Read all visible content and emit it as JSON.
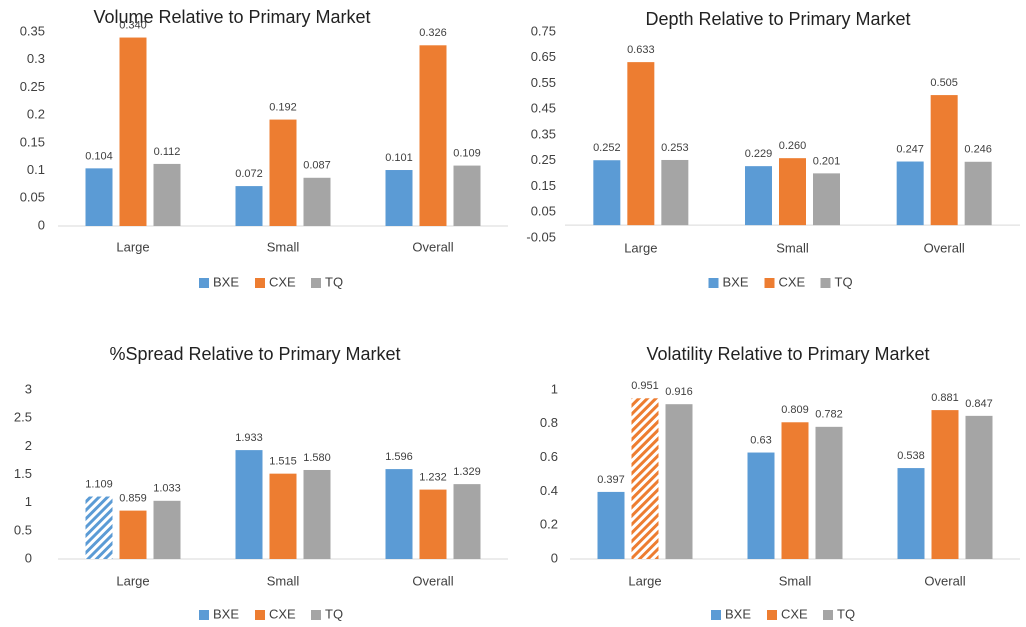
{
  "chart_data": [
    {
      "type": "bar",
      "title": "Volume Relative to Primary Market",
      "categories": [
        "Large",
        "Small",
        "Overall"
      ],
      "series": [
        {
          "name": "BXE",
          "color": "#5b9bd5",
          "values": [
            0.104,
            0.072,
            0.101
          ],
          "value_labels": [
            "0.104",
            "0.072",
            "0.101"
          ]
        },
        {
          "name": "CXE",
          "color": "#ed7d31",
          "values": [
            0.34,
            0.192,
            0.326
          ],
          "value_labels": [
            "0.340",
            "0.192",
            "0.326"
          ]
        },
        {
          "name": "TQ",
          "color": "#a5a5a5",
          "values": [
            0.112,
            0.087,
            0.109
          ],
          "value_labels": [
            "0.112",
            "0.087",
            "0.109"
          ]
        }
      ],
      "ylim": [
        0,
        0.35
      ],
      "yticks": [
        0,
        0.05,
        0.1,
        0.15,
        0.2,
        0.25,
        0.3,
        0.35
      ],
      "legend": "bottom"
    },
    {
      "type": "bar",
      "title": "Depth Relative to Primary Market",
      "categories": [
        "Large",
        "Small",
        "Overall"
      ],
      "series": [
        {
          "name": "BXE",
          "color": "#5b9bd5",
          "values": [
            0.252,
            0.229,
            0.247
          ],
          "value_labels": [
            "0.252",
            "0.229",
            "0.247"
          ]
        },
        {
          "name": "CXE",
          "color": "#ed7d31",
          "values": [
            0.633,
            0.26,
            0.505
          ],
          "value_labels": [
            "0.633",
            "0.260",
            "0.505"
          ]
        },
        {
          "name": "TQ",
          "color": "#a5a5a5",
          "values": [
            0.253,
            0.201,
            0.246
          ],
          "value_labels": [
            "0.253",
            "0.201",
            "0.246"
          ]
        }
      ],
      "ylim": [
        -0.05,
        0.75
      ],
      "yticks": [
        -0.05,
        0.05,
        0.15,
        0.25,
        0.35,
        0.45,
        0.55,
        0.65,
        0.75
      ],
      "legend": "bottom"
    },
    {
      "type": "bar",
      "title": "%Spread Relative to Primary Market",
      "categories": [
        "Large",
        "Small",
        "Overall"
      ],
      "series": [
        {
          "name": "BXE",
          "color": "#5b9bd5",
          "values": [
            1.109,
            1.933,
            1.596
          ],
          "value_labels": [
            "1.109",
            "1.933",
            "1.596"
          ],
          "hatched": [
            true,
            false,
            false
          ]
        },
        {
          "name": "CXE",
          "color": "#ed7d31",
          "values": [
            0.859,
            1.515,
            1.232
          ],
          "value_labels": [
            "0.859",
            "1.515",
            "1.232"
          ]
        },
        {
          "name": "TQ",
          "color": "#a5a5a5",
          "values": [
            1.033,
            1.58,
            1.329
          ],
          "value_labels": [
            "1.033",
            "1.580",
            "1.329"
          ]
        }
      ],
      "ylim": [
        0,
        3
      ],
      "yticks": [
        0,
        0.5,
        1,
        1.5,
        2,
        2.5,
        3
      ],
      "legend": "bottom"
    },
    {
      "type": "bar",
      "title": "Volatility Relative to Primary Market",
      "categories": [
        "Large",
        "Small",
        "Overall"
      ],
      "series": [
        {
          "name": "BXE",
          "color": "#5b9bd5",
          "values": [
            0.397,
            0.63,
            0.538
          ]
        },
        {
          "name": "CXE",
          "color": "#ed7d31",
          "values": [
            0.951,
            0.809,
            0.881
          ],
          "hatched": [
            true,
            false,
            false
          ]
        },
        {
          "name": "TQ",
          "color": "#a5a5a5",
          "values": [
            0.916,
            0.782,
            0.847
          ]
        }
      ],
      "ylim": [
        0,
        1
      ],
      "yticks": [
        0,
        0.2,
        0.4,
        0.6,
        0.8,
        1
      ],
      "legend": "bottom"
    }
  ]
}
